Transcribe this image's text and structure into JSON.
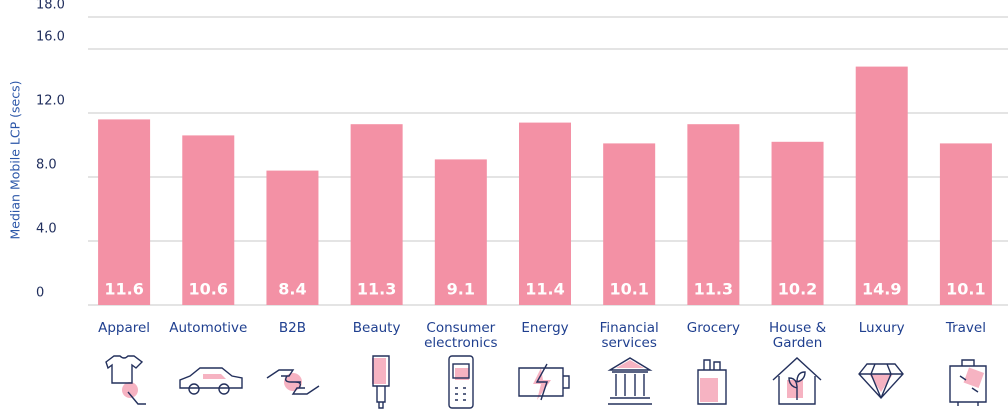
{
  "chart_data": {
    "type": "bar",
    "y_label": "Median Mobile LCP (secs)",
    "categories": [
      "Apparel",
      "Automotive",
      "B2B",
      "Beauty",
      "Consumer electronics",
      "Energy",
      "Financial services",
      "Grocery",
      "House & Garden",
      "Luxury",
      "Travel"
    ],
    "values": [
      11.6,
      10.6,
      8.4,
      11.3,
      9.1,
      11.4,
      10.1,
      11.3,
      10.2,
      14.9,
      10.1
    ],
    "color": "#f391a5",
    "ylim": [
      0,
      18
    ],
    "yticks": [
      0,
      {
        "value": 4,
        "label": "4.0"
      },
      {
        "value": 8,
        "label": "8.0"
      },
      {
        "value": 12,
        "label": "12.0"
      },
      {
        "value": 16,
        "label": "16.0"
      },
      {
        "value": 18,
        "label": "18.0"
      }
    ],
    "grid": true
  }
}
